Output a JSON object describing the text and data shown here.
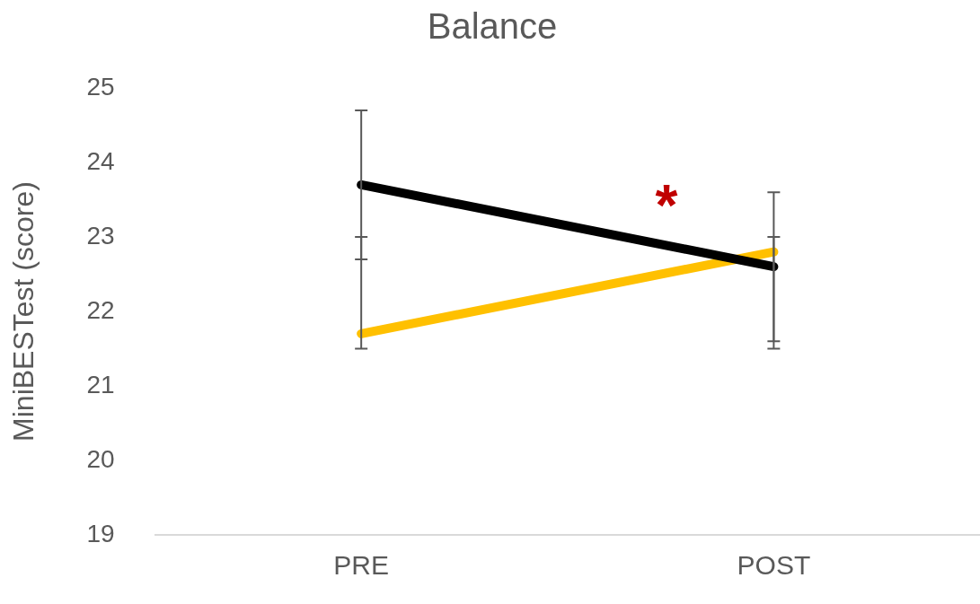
{
  "chart_data": {
    "type": "line",
    "title": "Balance",
    "ylabel": "MiniBESTest (score)",
    "categories": [
      "PRE",
      "POST"
    ],
    "series": [
      {
        "color": "#000000",
        "values": [
          23.7,
          22.6
        ],
        "errors": [
          [
            22.7,
            24.7
          ],
          [
            21.6,
            23.6
          ]
        ]
      },
      {
        "color": "#ffc000",
        "values": [
          21.7,
          22.8
        ],
        "errors": [
          [
            21.5,
            23.0
          ],
          [
            21.5,
            23.0
          ]
        ]
      }
    ],
    "ylim": [
      19,
      25
    ],
    "yticks": [
      19,
      20,
      21,
      22,
      23,
      24,
      25
    ],
    "grid": false,
    "legend": false,
    "marker": "none",
    "line_style": "solid",
    "annotations": [
      "*"
    ]
  }
}
